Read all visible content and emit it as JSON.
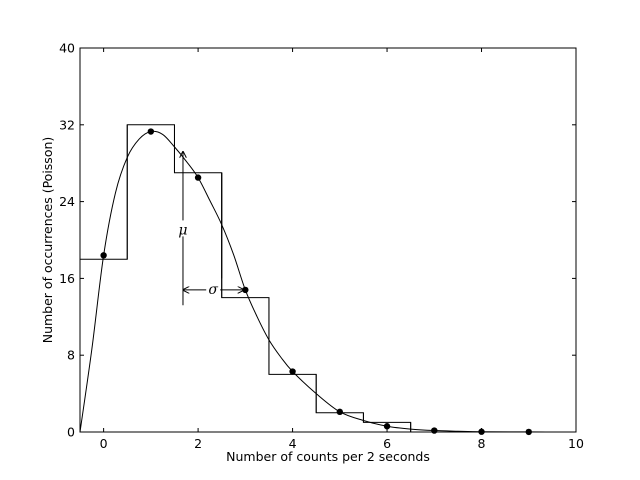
{
  "chart_data": {
    "type": "line",
    "xlabel": "Number of counts per 2 seconds",
    "ylabel": "Number of occurrences (Poisson)",
    "xlim": [
      -0.5,
      10
    ],
    "ylim": [
      0,
      40
    ],
    "xticks": [
      "0",
      "2",
      "4",
      "6",
      "8",
      "10"
    ],
    "yticks": [
      "0",
      "8",
      "16",
      "24",
      "32",
      "40"
    ],
    "series": [
      {
        "kind": "histogram",
        "bins": [
          {
            "x0": -0.5,
            "x1": 0.5,
            "y": 18
          },
          {
            "x0": 0.5,
            "x1": 1.5,
            "y": 32
          },
          {
            "x0": 1.5,
            "x1": 2.5,
            "y": 27
          },
          {
            "x0": 2.5,
            "x1": 3.5,
            "y": 14
          },
          {
            "x0": 3.5,
            "x1": 4.5,
            "y": 6
          },
          {
            "x0": 4.5,
            "x1": 5.5,
            "y": 2
          },
          {
            "x0": 5.5,
            "x1": 6.5,
            "y": 1
          },
          {
            "x0": 6.5,
            "x1": 7.5,
            "y": 0
          }
        ]
      },
      {
        "kind": "points",
        "x": [
          0,
          1,
          2,
          3,
          4,
          5,
          6,
          7,
          8,
          9
        ],
        "y": [
          18.4,
          31.3,
          26.5,
          14.8,
          6.3,
          2.1,
          0.6,
          0.15,
          0.03,
          0.01
        ]
      },
      {
        "kind": "curve",
        "description": "smooth fitted Poisson-like curve",
        "x": [
          -0.5,
          -0.25,
          0,
          0.25,
          0.5,
          0.75,
          1.0,
          1.25,
          1.5,
          1.75,
          2.0,
          2.25,
          2.5,
          2.75,
          3.0,
          3.25,
          3.5,
          3.75,
          4.0,
          4.5,
          5.0,
          5.5,
          6.0,
          6.5,
          7.0,
          7.5,
          8.0,
          9.0,
          10.0
        ],
        "y": [
          0.0,
          8.6,
          18.4,
          24.9,
          28.6,
          30.5,
          31.3,
          31.0,
          29.7,
          28.2,
          26.5,
          24.1,
          21.6,
          18.5,
          14.8,
          12.0,
          9.6,
          7.8,
          6.3,
          4.0,
          2.1,
          1.2,
          0.6,
          0.3,
          0.15,
          0.08,
          0.03,
          0.01,
          0.0
        ]
      }
    ],
    "annotations": [
      {
        "text": "μ",
        "kind": "vertical-arrow",
        "x": 1.68,
        "y_from": 13.2,
        "y_to": 29.2,
        "label_y": 21
      },
      {
        "text": "σ",
        "kind": "horizontal-double-arrow",
        "y": 14.8,
        "x_from": 1.68,
        "x_to": 2.97,
        "label_x": 2.32
      },
      {
        "kind": "vertical-guide",
        "x": 2.5,
        "y_from": 16,
        "y_to": 27
      }
    ],
    "grid": false
  }
}
